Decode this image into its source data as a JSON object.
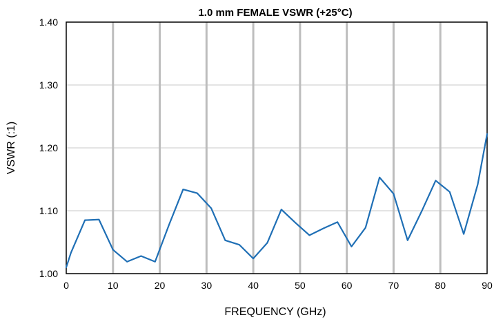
{
  "chart_data": {
    "type": "line",
    "title": "1.0 mm FEMALE VSWR (+25°C)",
    "xlabel": "FREQUENCY  (GHz)",
    "ylabel": "VSWR (:1)",
    "xlim": [
      0,
      90
    ],
    "ylim": [
      1.0,
      1.4
    ],
    "x_ticks": [
      0,
      10,
      20,
      30,
      40,
      50,
      60,
      70,
      80,
      90
    ],
    "y_ticks": [
      "1.00",
      "1.10",
      "1.20",
      "1.30",
      "1.40"
    ],
    "grid": {
      "vertical": true,
      "horizontal": true
    },
    "legend": "none",
    "line_color": "#1f6fb5",
    "series": [
      {
        "x": [
          0,
          1,
          4,
          7,
          10,
          13,
          16,
          19,
          22,
          25,
          28,
          31,
          34,
          37,
          40,
          43,
          46,
          49,
          52,
          55,
          58,
          61,
          64,
          67,
          70,
          73,
          76,
          79,
          82,
          85,
          88,
          90
        ],
        "y": [
          1.01,
          1.033,
          1.085,
          1.086,
          1.038,
          1.019,
          1.028,
          1.019,
          1.078,
          1.134,
          1.128,
          1.104,
          1.053,
          1.046,
          1.024,
          1.049,
          1.102,
          1.081,
          1.061,
          1.072,
          1.082,
          1.043,
          1.073,
          1.153,
          1.127,
          1.053,
          1.099,
          1.148,
          1.13,
          1.063,
          1.142,
          1.222
        ]
      }
    ]
  }
}
